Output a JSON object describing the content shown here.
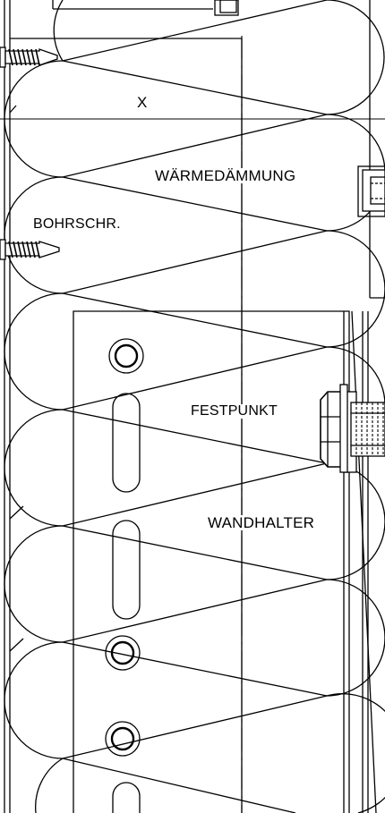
{
  "labels": {
    "x_mark": "X",
    "insulation": "WÄRMEDÄMMUNG",
    "screw": "BOHRSCHR.",
    "fixed_point": "FESTPUNKT",
    "wall_bracket": "WANDHALTER"
  },
  "colors": {
    "line": "#000000",
    "background": "#ffffff"
  }
}
